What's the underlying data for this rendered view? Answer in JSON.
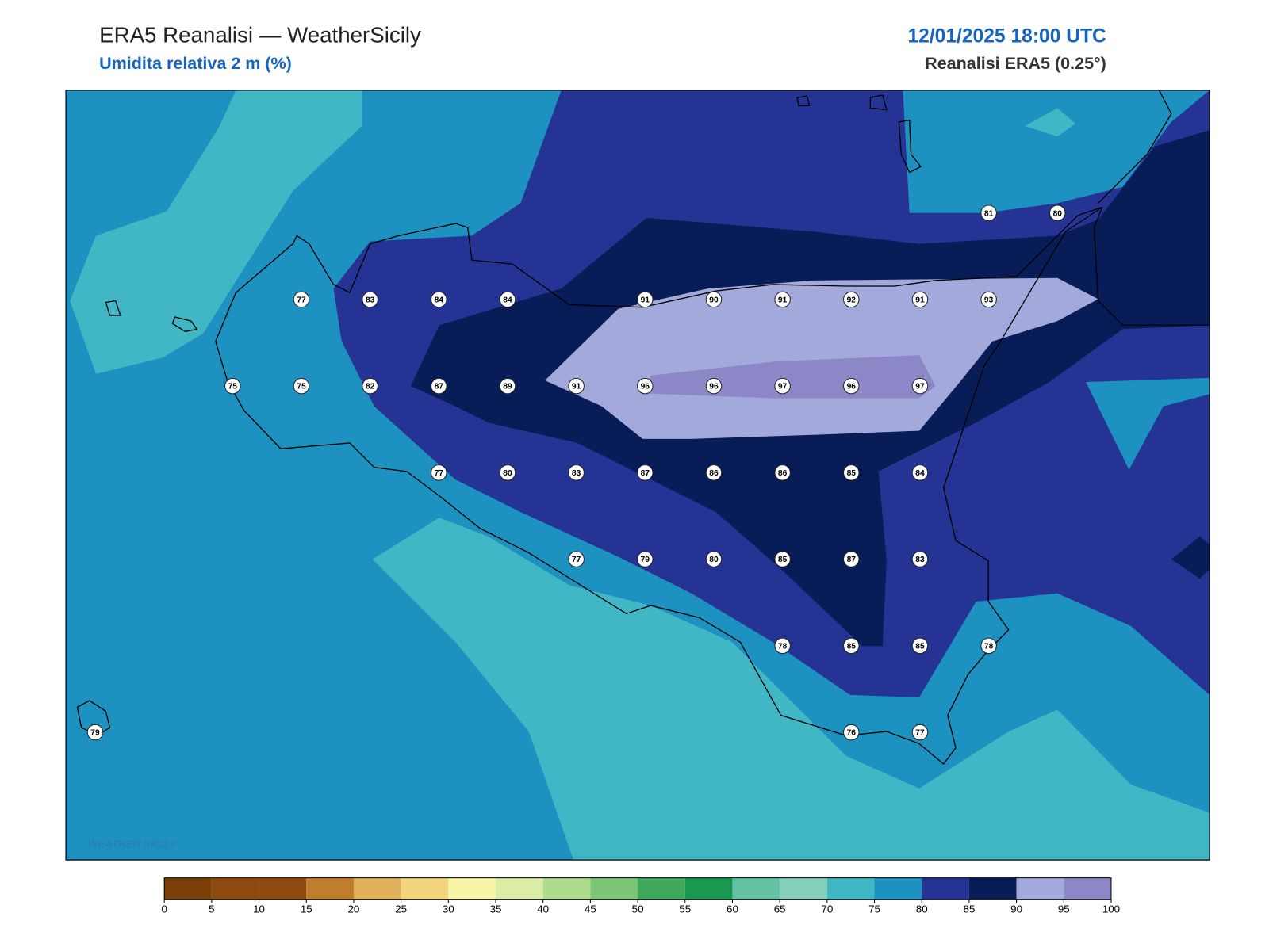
{
  "header": {
    "title": "ERA5 Reanalisi — WeatherSicily",
    "subtitle": "Umidita relativa 2 m (%)",
    "datetime": "12/01/2025 18:00 UTC",
    "source": "Reanalisi ERA5 (0.25°)"
  },
  "stations": {
    "rows": [
      [
        null,
        null,
        null,
        null,
        null,
        null,
        null,
        null,
        null,
        null,
        null,
        null,
        null,
        81,
        80
      ],
      [
        null,
        null,
        null,
        77,
        83,
        84,
        84,
        null,
        91,
        90,
        91,
        92,
        91,
        93,
        null
      ],
      [
        null,
        null,
        75,
        75,
        82,
        87,
        89,
        91,
        96,
        96,
        97,
        96,
        97,
        null,
        null
      ],
      [
        null,
        null,
        null,
        null,
        null,
        77,
        80,
        83,
        87,
        86,
        86,
        85,
        84,
        null,
        null
      ],
      [
        null,
        null,
        null,
        null,
        null,
        null,
        null,
        77,
        79,
        80,
        85,
        87,
        83,
        null,
        null
      ],
      [
        null,
        null,
        null,
        null,
        null,
        null,
        null,
        null,
        null,
        null,
        78,
        85,
        85,
        78,
        null
      ],
      [
        79,
        null,
        null,
        null,
        null,
        null,
        null,
        null,
        null,
        null,
        null,
        76,
        77,
        null,
        null
      ]
    ]
  },
  "colorbar": {
    "ticks": [
      0,
      5,
      10,
      15,
      20,
      25,
      30,
      35,
      40,
      45,
      50,
      55,
      60,
      65,
      70,
      75,
      80,
      85,
      90,
      95,
      100
    ],
    "colors": [
      "#7b3f08",
      "#8c4a0e",
      "#8c4a0e",
      "#bf7d2d",
      "#e0b05a",
      "#f2d47d",
      "#f7f3a7",
      "#d9eda5",
      "#aedc8e",
      "#7cc576",
      "#40a85a",
      "#1a9850",
      "#63c1a4",
      "#86cfbd",
      "#41b6c4",
      "#1d91c0",
      "#253494",
      "#081d58",
      "#a3a9db",
      "#8c88c8"
    ]
  },
  "logo": {
    "mark": "WS",
    "name": "WEATHER SICILY"
  }
}
